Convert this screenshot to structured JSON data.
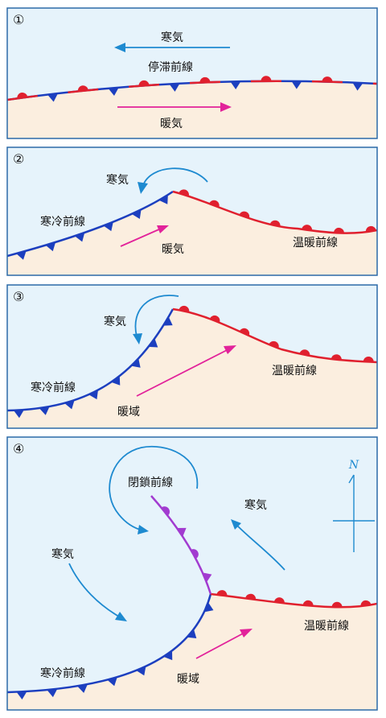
{
  "colors": {
    "panel_border": "#2b6aa8",
    "cold_air_bg": "#e6f3fb",
    "warm_air_bg": "#fbeedf",
    "cold_front": "#1c3fbf",
    "warm_front": "#e0202e",
    "occluded_front": "#a23bd0",
    "cold_arrow": "#1e8ad0",
    "warm_arrow": "#e2229a"
  },
  "panels": [
    {
      "number": "①",
      "labels": {
        "cold_air": "寒気",
        "front": "停滞前線",
        "warm_air": "暖気"
      }
    },
    {
      "number": "②",
      "labels": {
        "cold_air": "寒気",
        "cold_front": "寒冷前線",
        "warm_air": "暖気",
        "warm_front": "温暖前線"
      }
    },
    {
      "number": "③",
      "labels": {
        "cold_air": "寒気",
        "cold_front": "寒冷前線",
        "warm_sector": "暖域",
        "warm_front": "温暖前線"
      }
    },
    {
      "number": "④",
      "labels": {
        "occluded_front": "閉鎖前線",
        "cold_air_left": "寒気",
        "cold_air_right": "寒気",
        "cold_front": "寒冷前線",
        "warm_sector": "暖域",
        "warm_front": "温暖前線"
      },
      "compass": {
        "north": "N",
        "icon": "north-arrow-icon"
      }
    }
  ]
}
